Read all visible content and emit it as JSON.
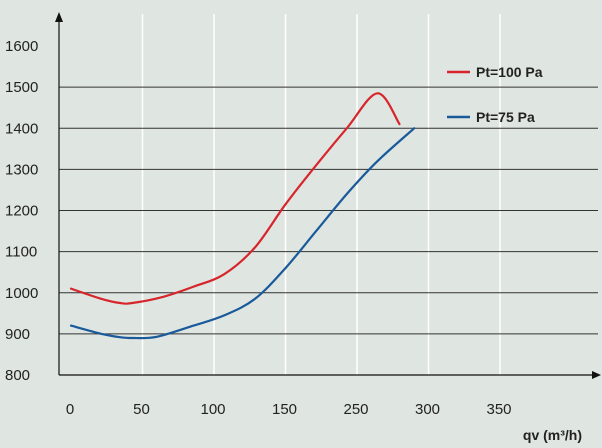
{
  "chart_data": {
    "type": "line",
    "title": "",
    "xlabel": "qv (m³/h)",
    "ylabel": "",
    "ylim": [
      800,
      1600
    ],
    "xlim": [
      0,
      350
    ],
    "x_tick_labels": [
      "0",
      "50",
      "100",
      "150",
      "250",
      "300",
      "350"
    ],
    "y_ticks": [
      800,
      900,
      1000,
      1100,
      1200,
      1300,
      1400,
      1500,
      1600
    ],
    "y_tick_labels": [
      "800",
      "900",
      "1000",
      "1100",
      "1200",
      "1300",
      "1400",
      "1500",
      "1600"
    ],
    "grid": true,
    "legend_position": "top-right",
    "series": [
      {
        "name": "Pt=100 Pa",
        "color": "#d7262b",
        "x": [
          0,
          25,
          40,
          50,
          75,
          100,
          125,
          150,
          175,
          200,
          225,
          250,
          268
        ],
        "y": [
          1010,
          985,
          975,
          975,
          990,
          1015,
          1045,
          1110,
          1215,
          1310,
          1400,
          1485,
          1410
        ]
      },
      {
        "name": "Pt=75 Pa",
        "color": "#1a5a9b",
        "x": [
          0,
          25,
          40,
          50,
          70,
          100,
          125,
          150,
          175,
          200,
          225,
          250,
          280
        ],
        "y": [
          920,
          900,
          892,
          890,
          893,
          920,
          945,
          985,
          1060,
          1150,
          1240,
          1320,
          1400
        ]
      }
    ]
  }
}
